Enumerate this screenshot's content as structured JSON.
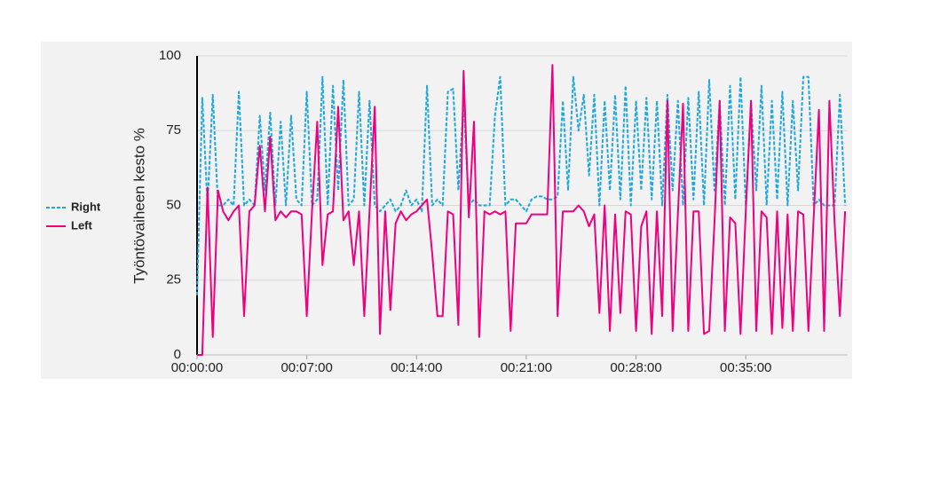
{
  "chart_data": {
    "type": "line",
    "ylabel": "Työntövaiheen kesto %",
    "x": [
      0,
      20,
      40,
      60,
      80,
      100,
      120,
      140,
      160,
      180,
      200,
      220,
      240,
      260,
      280,
      300,
      320,
      340,
      360,
      380,
      400,
      420,
      440,
      460,
      480,
      500,
      520,
      540,
      560,
      580,
      600,
      620,
      640,
      660,
      680,
      700,
      720,
      740,
      760,
      780,
      800,
      820,
      840,
      860,
      880,
      900,
      920,
      940,
      960,
      980,
      1000,
      1020,
      1040,
      1060,
      1080,
      1100,
      1120,
      1140,
      1160,
      1180,
      1200,
      1220,
      1240,
      1260,
      1280,
      1300,
      1320,
      1340,
      1360,
      1380,
      1400,
      1420,
      1440,
      1460,
      1480,
      1500,
      1520,
      1540,
      1560,
      1580,
      1600,
      1620,
      1640,
      1660,
      1680,
      1700,
      1720,
      1740,
      1760,
      1780,
      1800,
      1820,
      1840,
      1860,
      1880,
      1900,
      1920,
      1940,
      1960,
      1980,
      2000,
      2020,
      2040,
      2060,
      2080,
      2100,
      2120,
      2140,
      2160,
      2180,
      2200,
      2220,
      2240,
      2260,
      2280,
      2300,
      2320,
      2340,
      2360,
      2380,
      2400,
      2420,
      2440,
      2460,
      2480
    ],
    "series": [
      {
        "name": "Right",
        "color": "#1ea7dd",
        "dashed": true,
        "values": [
          20,
          86,
          50,
          87,
          50,
          50,
          52,
          50,
          88,
          50,
          52,
          50,
          80,
          55,
          81,
          50,
          78,
          50,
          80,
          52,
          50,
          88,
          50,
          52,
          93,
          50,
          90,
          55,
          92,
          50,
          52,
          88,
          50,
          85,
          50,
          48,
          50,
          52,
          48,
          50,
          55,
          50,
          52,
          48,
          90,
          50,
          52,
          50,
          88,
          89,
          55,
          85,
          50,
          52,
          50,
          50,
          50,
          80,
          93,
          50,
          52,
          52,
          50,
          48,
          52,
          53,
          53,
          52,
          52,
          53,
          85,
          55,
          93,
          75,
          87,
          60,
          87,
          50,
          85,
          55,
          87,
          52,
          90,
          50,
          85,
          55,
          86,
          52,
          85,
          50,
          87,
          55,
          85,
          50,
          86,
          52,
          88,
          50,
          92,
          55,
          85,
          50,
          90,
          52,
          93,
          50,
          85,
          55,
          90,
          50,
          85,
          52,
          88,
          50,
          85,
          55,
          93,
          93,
          50,
          52,
          50,
          50,
          50,
          87,
          50
        ]
      },
      {
        "name": "Left",
        "color": "#f0007f",
        "dashed": false,
        "values": [
          0,
          0,
          56,
          6,
          55,
          48,
          45,
          48,
          50,
          13,
          48,
          50,
          70,
          48,
          73,
          45,
          48,
          46,
          48,
          48,
          47,
          13,
          48,
          78,
          30,
          47,
          48,
          83,
          45,
          48,
          30,
          48,
          13,
          48,
          83,
          7,
          48,
          15,
          44,
          48,
          45,
          47,
          48,
          50,
          52,
          34,
          13,
          13,
          48,
          47,
          10,
          95,
          46,
          78,
          6,
          48,
          47,
          48,
          47,
          48,
          8,
          44,
          44,
          44,
          47,
          47,
          47,
          47,
          97,
          13,
          48,
          48,
          48,
          50,
          48,
          43,
          47,
          14,
          50,
          8,
          47,
          14,
          48,
          47,
          8,
          43,
          48,
          7,
          48,
          13,
          85,
          8,
          47,
          84,
          8,
          48,
          48,
          7,
          8,
          44,
          85,
          8,
          46,
          44,
          7,
          48,
          85,
          8,
          48,
          46,
          7,
          48,
          9,
          47,
          8,
          48,
          47,
          8,
          46,
          82,
          8,
          85,
          44,
          13,
          48
        ]
      }
    ],
    "xlim": [
      0,
      2490
    ],
    "xticks": [
      {
        "value": 0,
        "label": "00:00:00"
      },
      {
        "value": 420,
        "label": "00:07:00"
      },
      {
        "value": 840,
        "label": "00:14:00"
      },
      {
        "value": 1260,
        "label": "00:21:00"
      },
      {
        "value": 1680,
        "label": "00:28:00"
      },
      {
        "value": 2100,
        "label": "00:35:00"
      }
    ],
    "ylim": [
      0,
      100
    ],
    "yticks": [
      0,
      25,
      50,
      75,
      100
    ],
    "grid": true,
    "legend": "left"
  }
}
